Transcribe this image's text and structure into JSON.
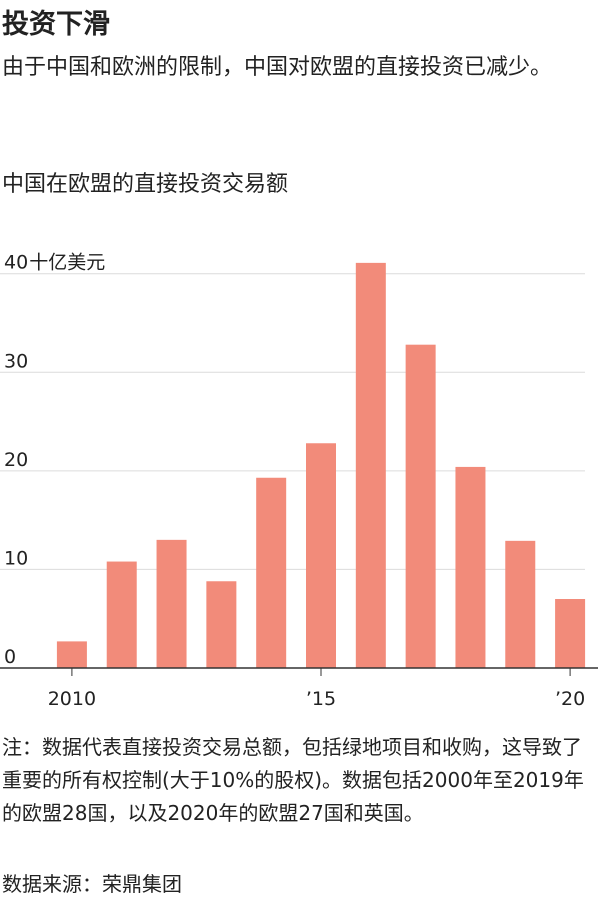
{
  "chart_data": {
    "type": "bar",
    "title": "投资下滑",
    "subtitle": "由于中国和欧洲的限制，中国对欧盟的直接投资已减少。",
    "chart_title": "中国在欧盟的直接投资交易额",
    "y_label": "十亿美元",
    "categories": [
      "2010",
      null,
      null,
      null,
      null,
      "’15",
      null,
      null,
      null,
      null,
      "’20"
    ],
    "values": [
      2.7,
      10.8,
      13.0,
      8.8,
      19.3,
      22.8,
      41.1,
      32.8,
      20.4,
      12.9,
      7.0
    ],
    "color": "#f28b7a",
    "ylim": [
      0,
      42
    ],
    "yticks": [
      0,
      10,
      20,
      30,
      40
    ],
    "grid": true,
    "note": "注：数据代表直接投资交易总额，包括绿地项目和收购，这导致了重要的所有权控制(大于10%的股权)。数据包括2000年至2019年的欧盟28国，以及2020年的欧盟27国和英国。",
    "source": "数据来源：荣鼎集团"
  }
}
